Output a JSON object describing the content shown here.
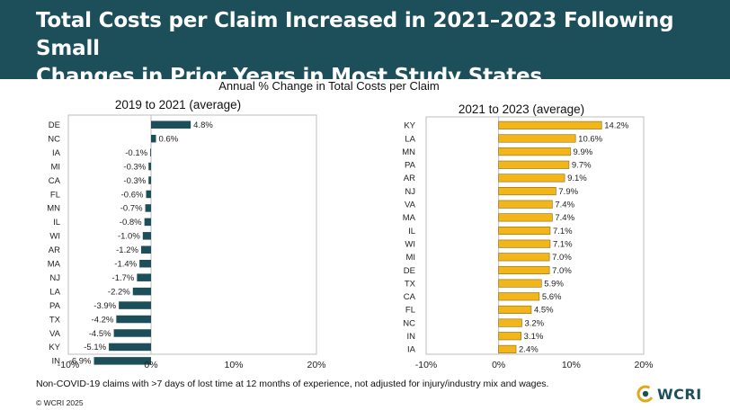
{
  "header": {
    "title_line1": "Total Costs per Claim Increased in 2021–2023 Following Small",
    "title_line2": "Changes in Prior Years in Most Study States"
  },
  "subtitle": "Annual % Change in Total Costs per Claim",
  "colors": {
    "header_bg": "#1d4f5a",
    "bar_left": "#1d4f5a",
    "bar_right": "#f2b61b"
  },
  "chart_data": [
    {
      "type": "bar",
      "orientation": "horizontal",
      "title": "2019 to 2021 (average)",
      "categories": [
        "DE",
        "NC",
        "IA",
        "MI",
        "CA",
        "FL",
        "MN",
        "IL",
        "WI",
        "AR",
        "MA",
        "NJ",
        "LA",
        "PA",
        "TX",
        "VA",
        "KY",
        "IN"
      ],
      "values": [
        4.8,
        0.6,
        -0.1,
        -0.3,
        -0.3,
        -0.6,
        -0.7,
        -0.8,
        -1.0,
        -1.2,
        -1.4,
        -1.7,
        -2.2,
        -3.9,
        -4.2,
        -4.5,
        -5.1,
        -6.9
      ],
      "labels": [
        "4.8%",
        "0.6%",
        "-0.1%",
        "-0.3%",
        "-0.3%",
        "-0.6%",
        "-0.7%",
        "-0.8%",
        "-1.0%",
        "-1.2%",
        "-1.4%",
        "-1.7%",
        "-2.2%",
        "-3.9%",
        "-4.2%",
        "-4.5%",
        "-5.1%",
        "-6.9%"
      ],
      "xlim": [
        -10,
        20
      ],
      "xticks": [
        "-10%",
        "0%",
        "10%",
        "20%"
      ],
      "xtick_values": [
        -10,
        0,
        10,
        20
      ]
    },
    {
      "type": "bar",
      "orientation": "horizontal",
      "title": "2021 to 2023 (average)",
      "categories": [
        "KY",
        "LA",
        "MN",
        "PA",
        "AR",
        "NJ",
        "VA",
        "MA",
        "IL",
        "WI",
        "MI",
        "DE",
        "TX",
        "CA",
        "FL",
        "NC",
        "IN",
        "IA"
      ],
      "values": [
        14.2,
        10.6,
        9.9,
        9.7,
        9.1,
        7.9,
        7.4,
        7.4,
        7.1,
        7.1,
        7.0,
        7.0,
        5.9,
        5.6,
        4.5,
        3.2,
        3.1,
        2.4
      ],
      "labels": [
        "14.2%",
        "10.6%",
        "9.9%",
        "9.7%",
        "9.1%",
        "7.9%",
        "7.4%",
        "7.4%",
        "7.1%",
        "7.1%",
        "7.0%",
        "7.0%",
        "5.9%",
        "5.6%",
        "4.5%",
        "3.2%",
        "3.1%",
        "2.4%"
      ],
      "xlim": [
        -10,
        20
      ],
      "xticks": [
        "-10%",
        "0%",
        "10%",
        "20%"
      ],
      "xtick_values": [
        -10,
        0,
        10,
        20
      ]
    }
  ],
  "footnote": "Non-COVID-19 claims with >7 days of lost time at 12 months of experience, not adjusted for injury/industry mix and wages.",
  "copyright": "© WCRI 2025",
  "logo": {
    "text": "WCRI",
    "icon": "wcri-logo-icon"
  }
}
